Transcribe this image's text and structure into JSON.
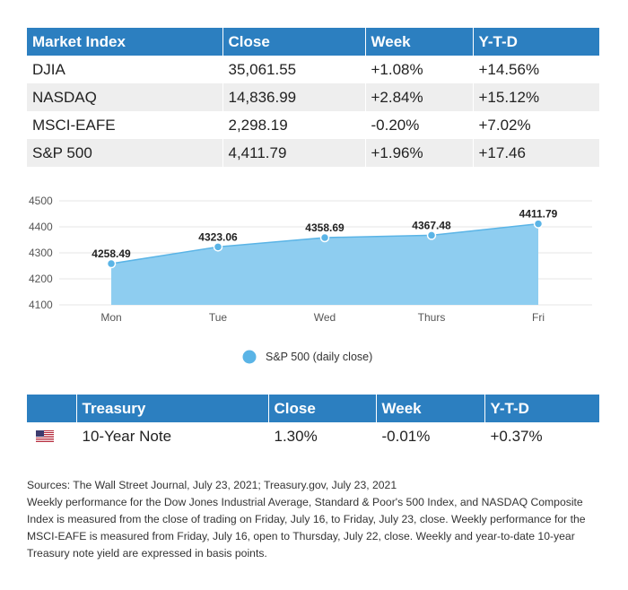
{
  "market_table": {
    "headers": [
      "Market Index",
      "Close",
      "Week",
      "Y-T-D"
    ],
    "rows": [
      [
        "DJIA",
        "35,061.55",
        "+1.08%",
        "+14.56%"
      ],
      [
        "NASDAQ",
        "14,836.99",
        "+2.84%",
        "+15.12%"
      ],
      [
        "MSCI-EAFE",
        "2,298.19",
        "-0.20%",
        "+7.02%"
      ],
      [
        "S&P 500",
        "4,411.79",
        "+1.96%",
        "+17.46"
      ]
    ]
  },
  "chart_data": {
    "type": "area",
    "categories": [
      "Mon",
      "Tue",
      "Wed",
      "Thurs",
      "Fri"
    ],
    "series": [
      {
        "name": "S&P 500 (daily close)",
        "values": [
          4258.49,
          4323.06,
          4358.69,
          4367.48,
          4411.79
        ]
      }
    ],
    "data_labels": [
      "4258.49",
      "4323.06",
      "4358.69",
      "4367.48",
      "4411.79"
    ],
    "yticks": [
      "4100",
      "4200",
      "4300",
      "4400",
      "4500"
    ],
    "ylim": [
      4100,
      4500
    ],
    "grid": true,
    "legend": "bottom-center",
    "colors": {
      "fill": "#8ecdf0",
      "line": "#5ab4e6",
      "point": "#5ab4e6"
    }
  },
  "treasury_table": {
    "headers": [
      "",
      "Treasury",
      "Close",
      "Week",
      "Y-T-D"
    ],
    "row": {
      "flag_icon": "us-flag-icon",
      "cells": [
        "10-Year Note",
        "1.30%",
        "-0.01%",
        "+0.37%"
      ]
    }
  },
  "notes": {
    "sources": "Sources: The Wall Street Journal, July 23, 2021; Treasury.gov, July 23, 2021",
    "body": "Weekly performance for the Dow Jones Industrial Average, Standard & Poor's 500 Index, and NASDAQ Composite Index is measured from the close of trading on Friday, July 16, to Friday, July 23, close. Weekly performance for the MSCI-EAFE is measured from Friday, July 16, open to Thursday, July 22, close. Weekly and year-to-date 10-year Treasury note yield are expressed in basis points."
  },
  "theme": {
    "header_bg": "#2c7fc0",
    "alt_row_bg": "#eeeeee"
  }
}
